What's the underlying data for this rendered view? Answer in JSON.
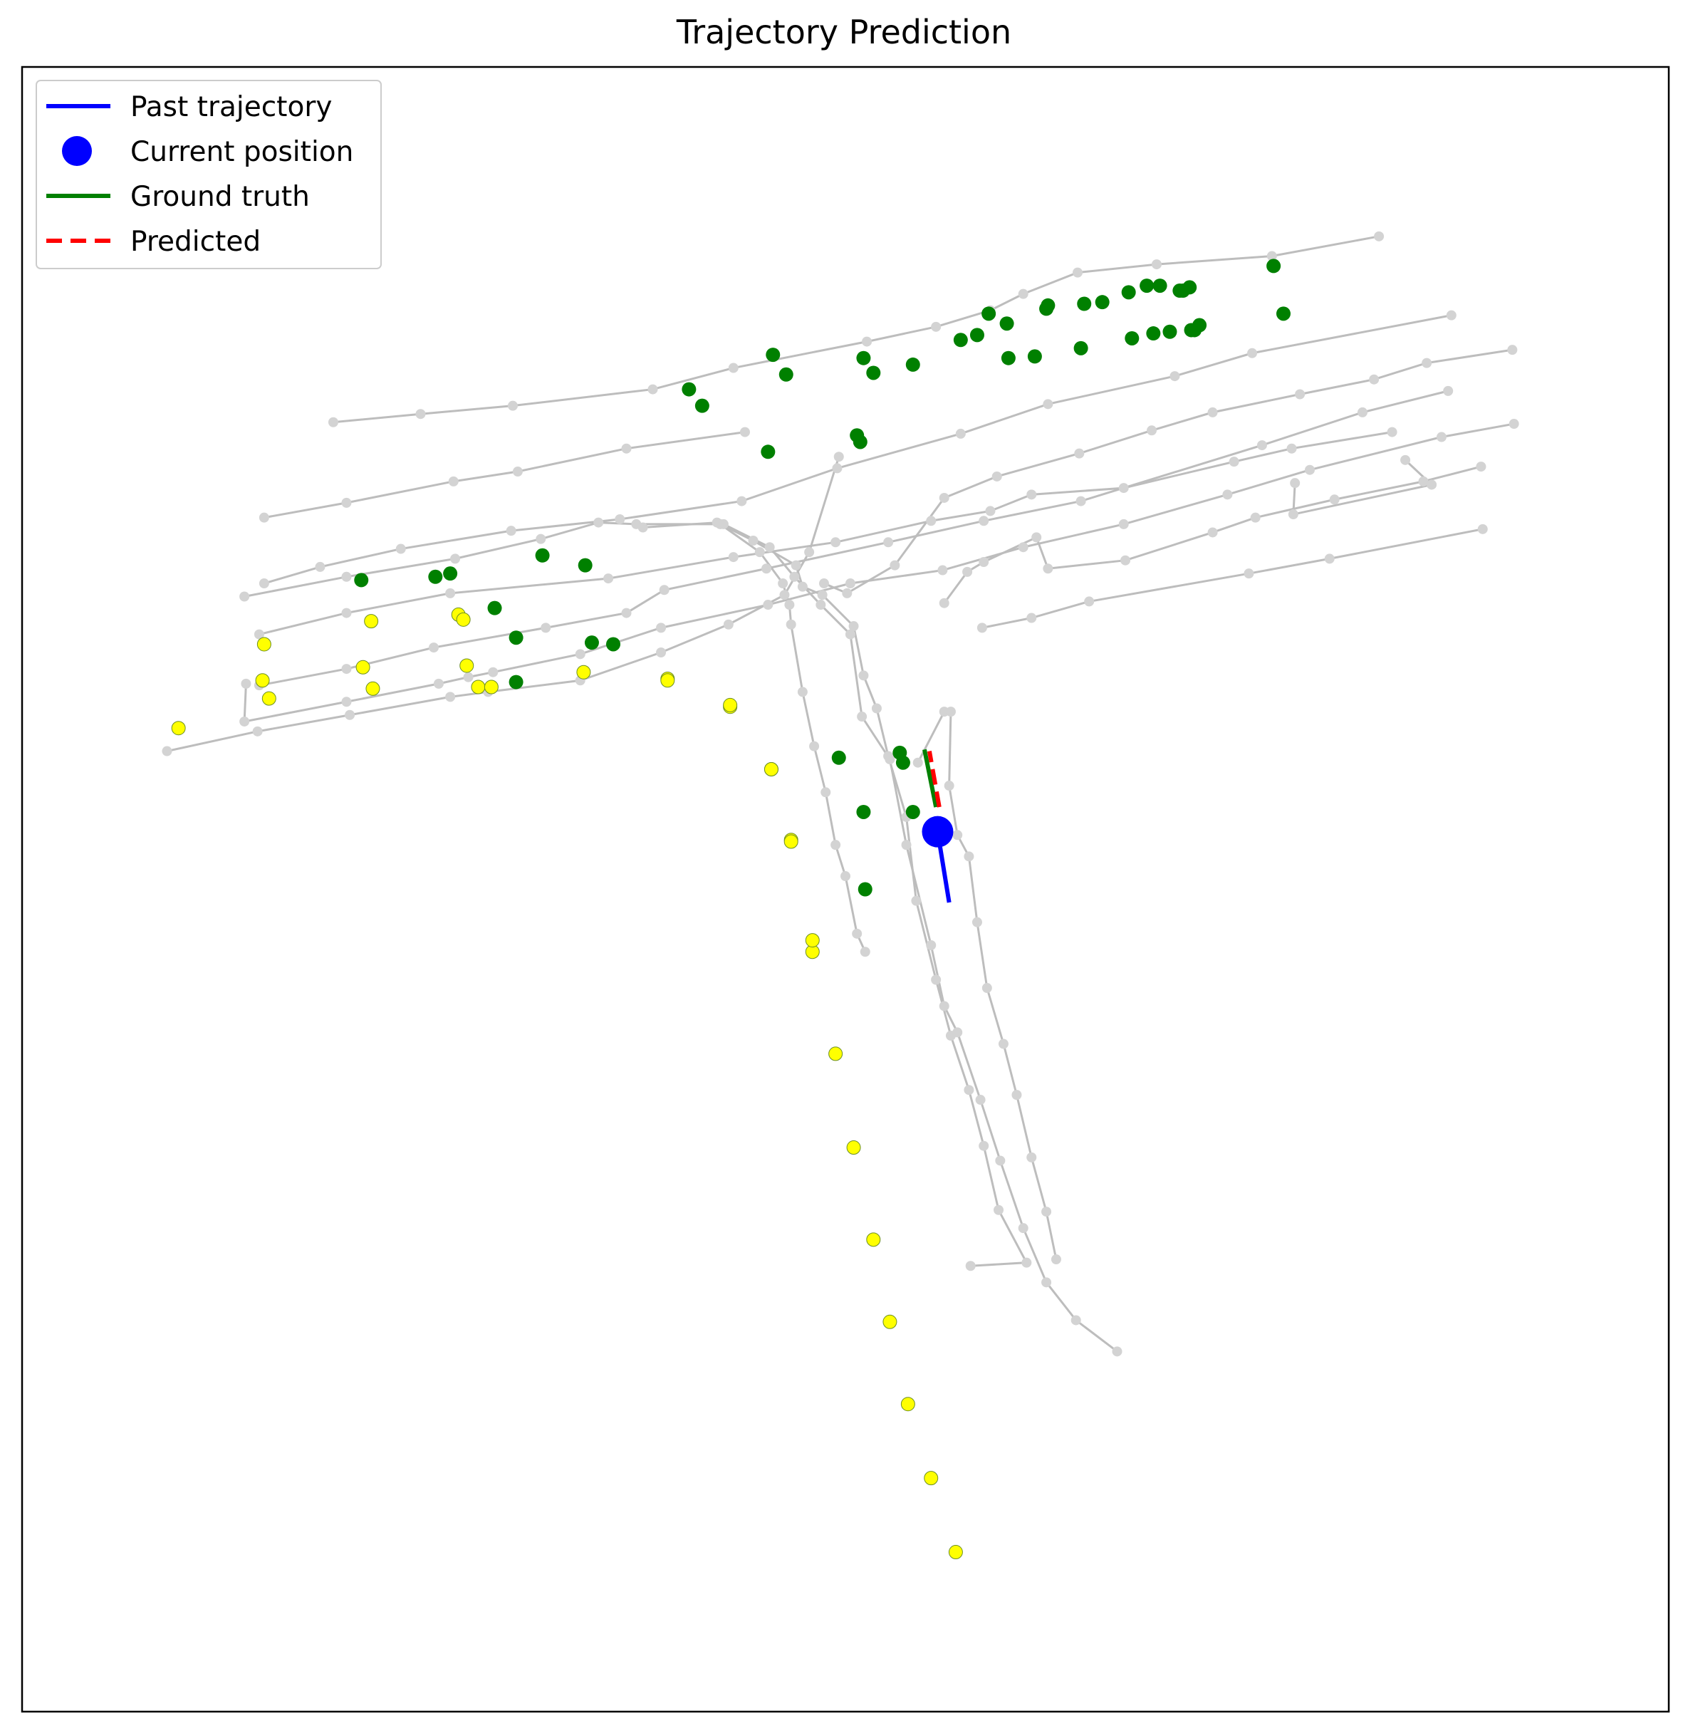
{
  "title": "Trajectory Prediction",
  "colors": {
    "edge": "#bdbdbd",
    "edge_dark": "#999999",
    "node": "#d3d3d3",
    "green": "#008000",
    "yellow": "#ffff00",
    "past": "#0000ff",
    "ground_truth": "#008000",
    "predicted": "#ff0000",
    "frame": "#000000"
  },
  "legend": {
    "placement": "top-left",
    "items": [
      {
        "label": "Past trajectory",
        "kind": "line",
        "color": "#0000ff"
      },
      {
        "label": "Current position",
        "kind": "marker",
        "color": "#0000ff"
      },
      {
        "label": "Ground truth",
        "kind": "line",
        "color": "#008000"
      },
      {
        "label": "Predicted",
        "kind": "dashed",
        "color": "#ff0000"
      }
    ]
  },
  "chart_data": {
    "type": "scatter",
    "title": "Trajectory Prediction",
    "xlabel": "",
    "ylabel": "",
    "ticks_visible": false,
    "grid": false,
    "xlim": [
      0,
      1000
    ],
    "ylim": [
      0,
      1000
    ],
    "lanes": [
      {
        "points": [
          [
            189,
            784
          ],
          [
            242,
            789
          ],
          [
            298,
            794
          ],
          [
            383,
            804
          ],
          [
            432,
            817
          ],
          [
            513,
            833
          ],
          [
            555,
            842
          ],
          [
            588,
            852
          ],
          [
            608,
            862
          ],
          [
            641,
            875
          ],
          [
            689,
            880
          ],
          [
            759,
            885
          ],
          [
            824,
            897
          ]
        ]
      },
      {
        "points": [
          [
            144,
            655
          ],
          [
            197,
            668
          ],
          [
            260,
            680
          ],
          [
            356,
            689
          ],
          [
            432,
            702
          ],
          [
            494,
            711
          ],
          [
            552,
            724
          ],
          [
            588,
            730
          ],
          [
            613,
            740
          ],
          [
            669,
            744
          ],
          [
            736,
            760
          ],
          [
            771,
            768
          ],
          [
            832,
            778
          ]
        ]
      },
      {
        "points": [
          [
            147,
            726
          ],
          [
            197,
            735
          ],
          [
            262,
            748
          ],
          [
            301,
            754
          ],
          [
            367,
            768
          ],
          [
            439,
            778
          ]
        ]
      },
      {
        "points": [
          [
            147,
            686
          ],
          [
            181,
            696
          ],
          [
            230,
            707
          ],
          [
            297,
            718
          ],
          [
            363,
            725
          ],
          [
            437,
            736
          ],
          [
            495,
            756
          ],
          [
            570,
            777
          ],
          [
            623,
            795
          ],
          [
            700,
            812
          ],
          [
            747,
            826
          ],
          [
            868,
            849
          ]
        ]
      },
      {
        "points": [
          [
            144,
            624
          ],
          [
            197,
            634
          ],
          [
            250,
            647
          ],
          [
            318,
            659
          ],
          [
            367,
            668
          ],
          [
            390,
            682
          ],
          [
            452,
            695
          ],
          [
            526,
            711
          ],
          [
            584,
            724
          ],
          [
            643,
            736
          ],
          [
            753,
            770
          ],
          [
            814,
            790
          ],
          [
            866,
            803
          ]
        ]
      },
      {
        "points": [
          [
            88,
            584
          ],
          [
            143,
            596
          ],
          [
            199,
            606
          ],
          [
            260,
            617
          ],
          [
            283,
            620
          ],
          [
            339,
            627
          ],
          [
            388,
            644
          ],
          [
            429,
            661
          ],
          [
            463,
            679
          ],
          [
            478,
            705
          ],
          [
            496,
            763
          ]
        ]
      },
      {
        "points": [
          [
            136,
            625
          ],
          [
            135,
            602
          ],
          [
            197,
            614
          ],
          [
            253,
            625
          ],
          [
            271,
            629
          ],
          [
            286,
            632
          ],
          [
            339,
            643
          ],
          [
            388,
            659
          ],
          [
            453,
            673
          ],
          [
            503,
            686
          ],
          [
            559,
            694
          ],
          [
            608,
            708
          ],
          [
            669,
            722
          ],
          [
            732,
            740
          ],
          [
            782,
            755
          ],
          [
            862,
            775
          ],
          [
            906,
            783
          ]
        ]
      },
      {
        "points": [
          [
            135,
            678
          ],
          [
            197,
            690
          ],
          [
            263,
            701
          ],
          [
            315,
            713
          ],
          [
            350,
            723
          ],
          [
            373,
            722
          ],
          [
            424,
            722
          ],
          [
            448,
            705
          ],
          [
            462,
            686
          ],
          [
            466,
            673
          ],
          [
            467,
            661
          ],
          [
            474,
            620
          ],
          [
            481,
            587
          ],
          [
            488,
            559
          ],
          [
            494,
            527
          ],
          [
            500,
            508
          ],
          [
            507,
            473
          ],
          [
            512,
            462
          ]
        ]
      },
      {
        "points": [
          [
            377,
            720
          ],
          [
            422,
            723
          ],
          [
            444,
            712
          ],
          [
            470,
            697
          ],
          [
            474,
            684
          ],
          [
            486,
            679
          ],
          [
            505,
            660
          ],
          [
            511,
            630
          ],
          [
            519,
            610
          ],
          [
            526,
            581
          ],
          [
            537,
            544
          ],
          [
            543,
            493
          ],
          [
            555,
            445
          ],
          [
            564,
            411
          ],
          [
            575,
            378
          ],
          [
            584,
            344
          ],
          [
            593,
            305
          ],
          [
            610,
            273
          ],
          [
            576,
            271
          ]
        ]
      },
      {
        "points": [
          [
            426,
            722
          ],
          [
            454,
            708
          ],
          [
            469,
            690
          ],
          [
            485,
            673
          ],
          [
            503,
            655
          ],
          [
            510,
            605
          ],
          [
            527,
            579
          ],
          [
            537,
            527
          ],
          [
            552,
            466
          ],
          [
            560,
            429
          ],
          [
            568,
            413
          ],
          [
            582,
            372
          ],
          [
            594,
            335
          ],
          [
            608,
            294
          ],
          [
            622,
            261
          ],
          [
            640,
            238
          ],
          [
            665,
            219
          ]
        ]
      },
      {
        "points": [
          [
            544,
            577
          ],
          [
            560,
            608
          ],
          [
            564,
            608
          ],
          [
            563,
            563
          ],
          [
            568,
            533
          ],
          [
            575,
            520
          ],
          [
            580,
            480
          ],
          [
            586,
            440
          ],
          [
            596,
            406
          ],
          [
            604,
            375
          ],
          [
            613,
            337
          ],
          [
            622,
            304
          ],
          [
            628,
            275
          ]
        ]
      },
      {
        "points": [
          [
            487,
            686
          ],
          [
            501,
            680
          ],
          [
            530,
            697
          ],
          [
            560,
            738
          ],
          [
            592,
            751
          ],
          [
            642,
            765
          ],
          [
            686,
            779
          ],
          [
            723,
            790
          ],
          [
            776,
            801
          ],
          [
            821,
            810
          ],
          [
            853,
            820
          ],
          [
            905,
            828
          ]
        ]
      },
      {
        "points": [
          [
            560,
            674
          ],
          [
            574,
            693
          ],
          [
            584,
            699
          ],
          [
            616,
            714
          ],
          [
            623,
            695
          ],
          [
            670,
            700
          ],
          [
            723,
            717
          ],
          [
            749,
            726
          ],
          [
            797,
            737
          ],
          [
            851,
            748
          ],
          [
            886,
            757
          ]
        ]
      },
      {
        "points": [
          [
            583,
            659
          ],
          [
            613,
            665
          ],
          [
            648,
            675
          ],
          [
            745,
            692
          ],
          [
            794,
            701
          ],
          [
            887,
            719
          ]
        ]
      },
      {
        "points": [
          [
            773,
            747
          ],
          [
            772,
            728
          ],
          [
            856,
            746
          ],
          [
            840,
            761
          ]
        ]
      }
    ],
    "green_nodes": [
      [
        760,
        879
      ],
      [
        766,
        850
      ],
      [
        703,
        864
      ],
      [
        705,
        864
      ],
      [
        709,
        866
      ],
      [
        691,
        867
      ],
      [
        683,
        867
      ],
      [
        672,
        863
      ],
      [
        656,
        857
      ],
      [
        645,
        856
      ],
      [
        622,
        853
      ],
      [
        598,
        844
      ],
      [
        580,
        837
      ],
      [
        570,
        834
      ],
      [
        541,
        819
      ],
      [
        517,
        814
      ],
      [
        456,
        825
      ],
      [
        464,
        813
      ],
      [
        405,
        804
      ],
      [
        413,
        794
      ],
      [
        511,
        823
      ],
      [
        507,
        776
      ],
      [
        509,
        772
      ],
      [
        453,
        766
      ],
      [
        587,
        850
      ],
      [
        623,
        855
      ],
      [
        599,
        823
      ],
      [
        615,
        824
      ],
      [
        643,
        829
      ],
      [
        674,
        835
      ],
      [
        687,
        838
      ],
      [
        697,
        839
      ],
      [
        710,
        840
      ],
      [
        715,
        843
      ],
      [
        712,
        840
      ],
      [
        206,
        688
      ],
      [
        251,
        690
      ],
      [
        260,
        692
      ],
      [
        316,
        703
      ],
      [
        342,
        697
      ],
      [
        287,
        671
      ],
      [
        300,
        653
      ],
      [
        346,
        650
      ],
      [
        359,
        649
      ],
      [
        300,
        626
      ],
      [
        496,
        580
      ],
      [
        533,
        583
      ],
      [
        535,
        577
      ],
      [
        541,
        547
      ],
      [
        511,
        547
      ],
      [
        512,
        500
      ]
    ],
    "yellow_nodes": [
      [
        147,
        649
      ],
      [
        212,
        663
      ],
      [
        265,
        667
      ],
      [
        146,
        627
      ],
      [
        207,
        635
      ],
      [
        270,
        636
      ],
      [
        277,
        623
      ],
      [
        285,
        623
      ],
      [
        341,
        632
      ],
      [
        392,
        628
      ],
      [
        213,
        622
      ],
      [
        150,
        616
      ],
      [
        95,
        598
      ],
      [
        430,
        611
      ],
      [
        455,
        573
      ],
      [
        467,
        530
      ],
      [
        480,
        462
      ],
      [
        494,
        400
      ],
      [
        505,
        343
      ],
      [
        517,
        287
      ],
      [
        527,
        237
      ],
      [
        538,
        187
      ],
      [
        552,
        142
      ],
      [
        567,
        97
      ],
      [
        268,
        664
      ],
      [
        392,
        627
      ],
      [
        430,
        612
      ],
      [
        455,
        573
      ],
      [
        467,
        529
      ],
      [
        480,
        469
      ]
    ],
    "past_trajectory": [
      [
        563,
        492
      ],
      [
        556,
        535
      ]
    ],
    "current_position": [
      556,
      535
    ],
    "ground_truth": [
      [
        555,
        550
      ],
      [
        548,
        585
      ]
    ],
    "predicted": [
      [
        557,
        550
      ],
      [
        551,
        584
      ]
    ]
  }
}
